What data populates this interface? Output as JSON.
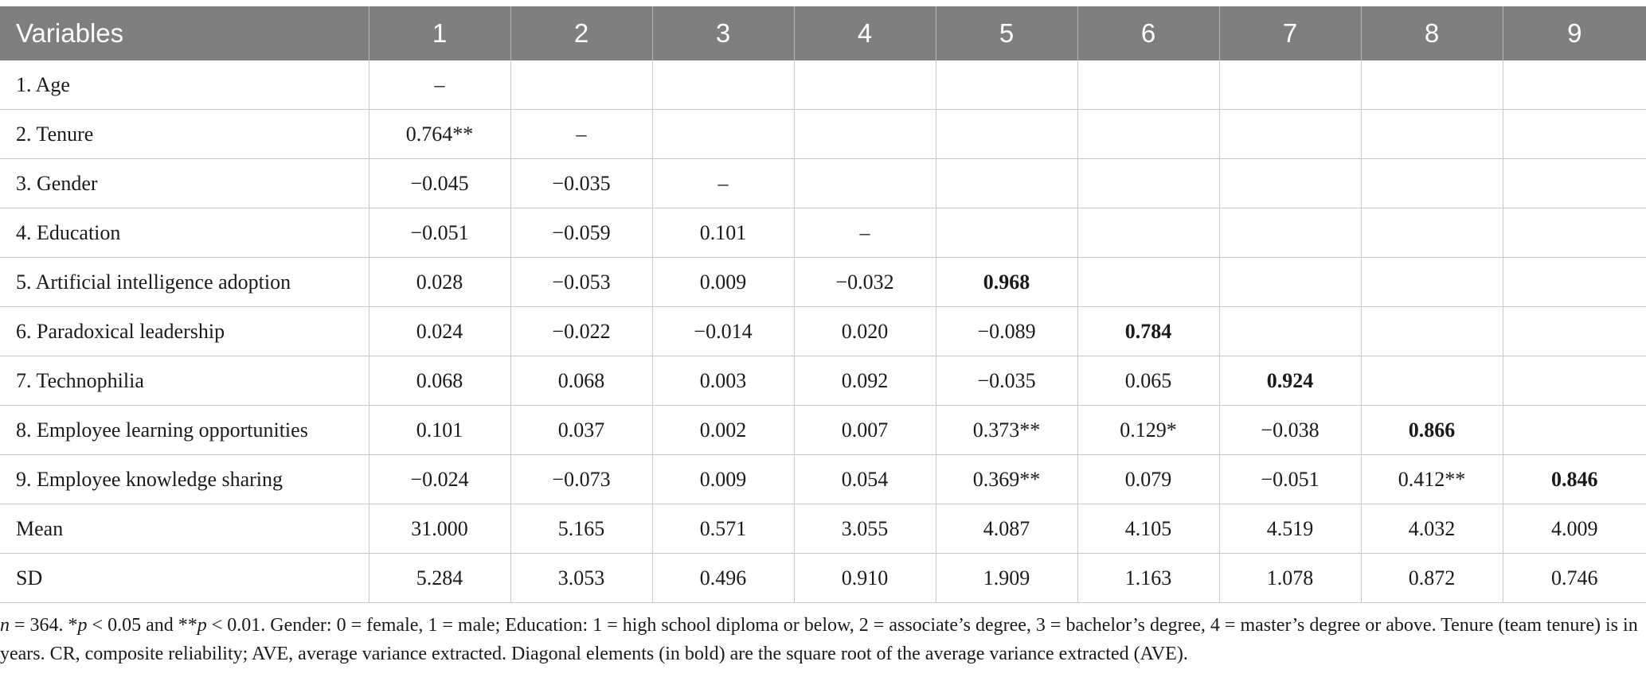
{
  "table": {
    "headers": [
      "Variables",
      "1",
      "2",
      "3",
      "4",
      "5",
      "6",
      "7",
      "8",
      "9"
    ],
    "rows": [
      {
        "label": "1. Age",
        "cells": [
          "–",
          "",
          "",
          "",
          "",
          "",
          "",
          "",
          ""
        ]
      },
      {
        "label": "2. Tenure",
        "cells": [
          "0.764**",
          "–",
          "",
          "",
          "",
          "",
          "",
          "",
          ""
        ]
      },
      {
        "label": "3. Gender",
        "cells": [
          "−0.045",
          "−0.035",
          "–",
          "",
          "",
          "",
          "",
          "",
          ""
        ]
      },
      {
        "label": "4. Education",
        "cells": [
          "−0.051",
          "−0.059",
          "0.101",
          "–",
          "",
          "",
          "",
          "",
          ""
        ]
      },
      {
        "label": "5. Artificial intelligence adoption",
        "cells": [
          "0.028",
          "−0.053",
          "0.009",
          "−0.032",
          "0.968",
          "",
          "",
          "",
          ""
        ],
        "bold_index": 4
      },
      {
        "label": "6. Paradoxical leadership",
        "cells": [
          "0.024",
          "−0.022",
          "−0.014",
          "0.020",
          "−0.089",
          "0.784",
          "",
          "",
          ""
        ],
        "bold_index": 5
      },
      {
        "label": "7. Technophilia",
        "cells": [
          "0.068",
          "0.068",
          "0.003",
          "0.092",
          "−0.035",
          "0.065",
          "0.924",
          "",
          ""
        ],
        "bold_index": 6
      },
      {
        "label": "8. Employee learning opportunities",
        "cells": [
          "0.101",
          "0.037",
          "0.002",
          "0.007",
          "0.373**",
          "0.129*",
          "−0.038",
          "0.866",
          ""
        ],
        "bold_index": 7
      },
      {
        "label": "9. Employee knowledge sharing",
        "cells": [
          "−0.024",
          "−0.073",
          "0.009",
          "0.054",
          "0.369**",
          "0.079",
          "−0.051",
          "0.412**",
          "0.846"
        ],
        "bold_index": 8
      },
      {
        "label": "Mean",
        "cells": [
          "31.000",
          "5.165",
          "0.571",
          "3.055",
          "4.087",
          "4.105",
          "4.519",
          "4.032",
          "4.009"
        ]
      },
      {
        "label": "SD",
        "cells": [
          "5.284",
          "3.053",
          "0.496",
          "0.910",
          "1.909",
          "1.163",
          "1.078",
          "0.872",
          "0.746"
        ]
      }
    ]
  },
  "note": {
    "n_symbol": "n",
    "n_text": " = 364. *",
    "p1_symbol": "p",
    "p1_text": " < 0.05 and **",
    "p2_symbol": "p",
    "rest": " < 0.01. Gender: 0 = female, 1 = male; Education: 1 = high school diploma or below, 2 = associate’s degree, 3 = bachelor’s degree, 4 = master’s degree or above. Tenure (team tenure) is in years. CR, composite reliability; AVE, average variance extracted. Diagonal elements (in bold) are the square root of the average variance extracted (AVE)."
  }
}
